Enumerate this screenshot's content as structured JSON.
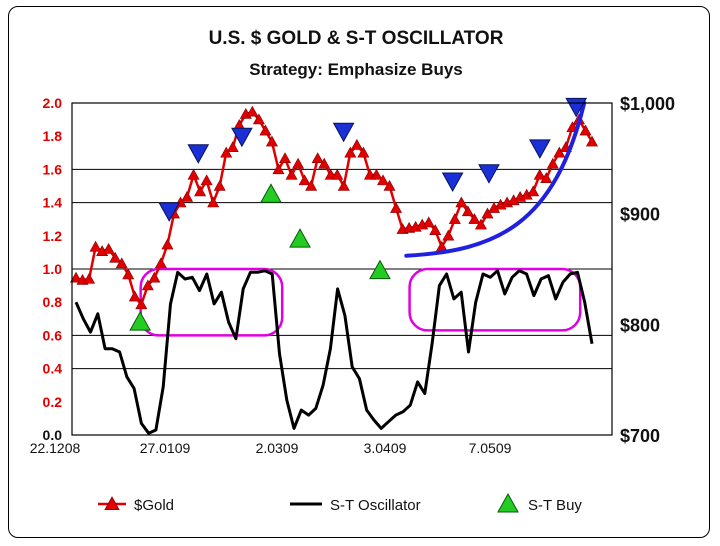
{
  "chart_data": {
    "type": "line",
    "title": "U.S. $ GOLD & S-T OSCILLATOR",
    "subtitle": "Strategy: Emphasize Buys",
    "left_axis": {
      "label": "",
      "range": [
        0.0,
        2.0
      ],
      "ticks": [
        "0.0",
        "0.2",
        "0.4",
        "0.6",
        "0.8",
        "1.0",
        "1.2",
        "1.4",
        "1.6",
        "1.8",
        "2.0"
      ]
    },
    "right_axis": {
      "label": "",
      "range": [
        700,
        1000
      ],
      "ticks": [
        "$700",
        "$800",
        "$900",
        "$1,000"
      ]
    },
    "x_ticks": [
      "22.1208",
      "27.0109",
      "2.0309",
      "3.0409",
      "7.0509"
    ],
    "grid": "horizontal at every 0.2 above 0.4 and at 0.4",
    "series": [
      {
        "name": "$Gold",
        "axis": "right",
        "color": "#e00000",
        "marker": "triangle-up",
        "values": [
          842,
          840,
          841,
          870,
          866,
          868,
          860,
          855,
          845,
          825,
          818,
          835,
          842,
          855,
          872,
          900,
          910,
          915,
          935,
          920,
          930,
          910,
          925,
          955,
          960,
          980,
          990,
          992,
          985,
          975,
          965,
          940,
          950,
          935,
          945,
          930,
          925,
          950,
          945,
          935,
          935,
          925,
          955,
          962,
          955,
          935,
          935,
          930,
          925,
          905,
          886,
          887,
          888,
          890,
          892,
          885,
          870,
          880,
          895,
          910,
          902,
          895,
          890,
          900,
          905,
          908,
          910,
          912,
          915,
          917,
          920,
          935,
          932,
          945,
          955,
          960,
          978,
          985,
          975,
          965
        ]
      },
      {
        "name": "S-T Oscillator",
        "axis": "left",
        "color": "#000000",
        "values": [
          0.8,
          0.7,
          0.62,
          0.73,
          0.52,
          0.52,
          0.5,
          0.35,
          0.28,
          0.07,
          0.01,
          0.03,
          0.29,
          0.79,
          0.98,
          0.94,
          0.95,
          0.87,
          0.97,
          0.79,
          0.86,
          0.68,
          0.58,
          0.88,
          0.98,
          0.98,
          0.99,
          0.97,
          0.49,
          0.21,
          0.04,
          0.15,
          0.12,
          0.16,
          0.3,
          0.52,
          0.88,
          0.72,
          0.41,
          0.34,
          0.15,
          0.09,
          0.04,
          0.08,
          0.12,
          0.14,
          0.18,
          0.32,
          0.25,
          0.55,
          0.9,
          0.97,
          0.82,
          0.86,
          0.5,
          0.8,
          0.97,
          0.95,
          0.99,
          0.85,
          0.95,
          0.99,
          0.97,
          0.84,
          0.94,
          0.96,
          0.82,
          0.92,
          0.97,
          0.98,
          0.8,
          0.55
        ]
      }
    ],
    "annotations": {
      "st_buy_markers": [
        {
          "x_index": 8,
          "y_left": 0.68
        },
        {
          "x_index": 26,
          "y_left": 1.45
        },
        {
          "x_index": 30,
          "y_left": 1.18
        },
        {
          "x_index": 41,
          "y_left": 0.99
        }
      ],
      "sell_markers": [
        {
          "x_index": 12,
          "y_left": 1.35
        },
        {
          "x_index": 16,
          "y_left": 1.7
        },
        {
          "x_index": 22,
          "y_left": 1.8
        },
        {
          "x_index": 36,
          "y_left": 1.83
        },
        {
          "x_index": 51,
          "y_left": 1.53
        },
        {
          "x_index": 56,
          "y_left": 1.58
        },
        {
          "x_index": 63,
          "y_left": 1.73
        },
        {
          "x_index": 68,
          "y_left": 1.98
        }
      ],
      "highlight_boxes": [
        {
          "from_index": 10,
          "to_index": 27,
          "y_range": [
            0.6,
            1.0
          ],
          "color": "#e000e0"
        },
        {
          "from_index": 47,
          "to_index": 68,
          "y_range": [
            0.63,
            1.0
          ],
          "color": "#e000e0"
        }
      ],
      "trend_curve": {
        "from_index": 46,
        "to_index": 68,
        "color": "#2020e0",
        "label": ""
      }
    },
    "legend": {
      "position": "bottom",
      "entries": [
        {
          "label": "$Gold",
          "color": "#e00000",
          "marker": "triangle-up"
        },
        {
          "label": "S-T Oscillator",
          "color": "#000000",
          "marker": "line"
        },
        {
          "label": "S-T Buy",
          "color": "#22cc22",
          "marker": "triangle-up"
        }
      ]
    }
  }
}
